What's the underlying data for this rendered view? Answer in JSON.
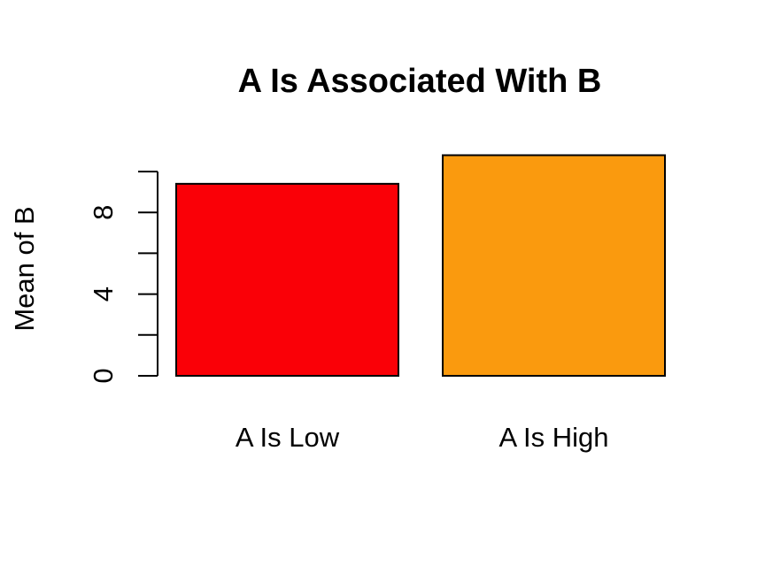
{
  "chart_data": {
    "type": "bar",
    "title": "A Is Associated With B",
    "xlabel": "",
    "ylabel": "Mean of B",
    "categories": [
      "A Is Low",
      "A Is High"
    ],
    "values": [
      9.4,
      10.8
    ],
    "colors": [
      "#fa0007",
      "#fa9a0e"
    ],
    "ylim": [
      0,
      10
    ],
    "y_ticks": [
      0,
      2,
      4,
      6,
      8,
      10
    ],
    "y_tick_labels": [
      "0",
      "",
      "4",
      "",
      "8",
      ""
    ],
    "grid": false,
    "legend": "none"
  }
}
